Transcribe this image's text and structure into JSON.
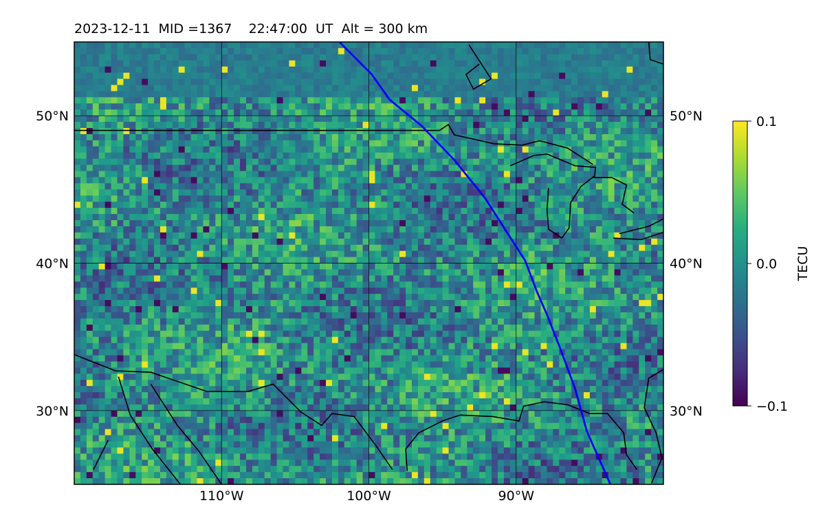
{
  "chart_data": {
    "type": "heatmap",
    "title": "2023-12-11  MID =1367    22:47:00  UT  Alt = 300 km",
    "projection": "map",
    "lon_range": [
      -120,
      -80
    ],
    "lat_range": [
      25,
      55
    ],
    "x_ticks": [
      {
        "value": -110,
        "label": "110°W"
      },
      {
        "value": -100,
        "label": "100°W"
      },
      {
        "value": -90,
        "label": "90°W"
      }
    ],
    "y_ticks": [
      {
        "value": 30,
        "label": "30°N"
      },
      {
        "value": 40,
        "label": "40°N"
      },
      {
        "value": 50,
        "label": "50°N"
      }
    ],
    "grid": true,
    "colormap": "viridis",
    "colorbar": {
      "label": "TECU",
      "min": -0.1,
      "max": 0.1,
      "ticks": [
        {
          "value": 0.1,
          "label": "0.1"
        },
        {
          "value": 0.0,
          "label": "0.0"
        },
        {
          "value": -0.1,
          "label": "−0.1"
        }
      ]
    },
    "track": {
      "color": "#0000ff",
      "points": [
        [
          -102.0,
          55.0
        ],
        [
          -99.8,
          52.8
        ],
        [
          -98.6,
          51.1
        ],
        [
          -96.4,
          49.3
        ],
        [
          -94.2,
          47.0
        ],
        [
          -92.1,
          44.4
        ],
        [
          -90.7,
          42.2
        ],
        [
          -89.4,
          40.2
        ],
        [
          -88.6,
          38.1
        ],
        [
          -87.9,
          36.5
        ],
        [
          -87.0,
          34.2
        ],
        [
          -86.0,
          31.5
        ],
        [
          -85.2,
          28.6
        ],
        [
          -83.6,
          25.0
        ]
      ]
    },
    "features": {
      "coast_color": "#000000",
      "track_color": "#0000ff"
    },
    "field": {
      "cols": 96,
      "rows": 72,
      "seed": 1367,
      "note_colors": [
        "#440154",
        "#3b528b",
        "#21918c",
        "#5ec962",
        "#fde725"
      ]
    }
  }
}
